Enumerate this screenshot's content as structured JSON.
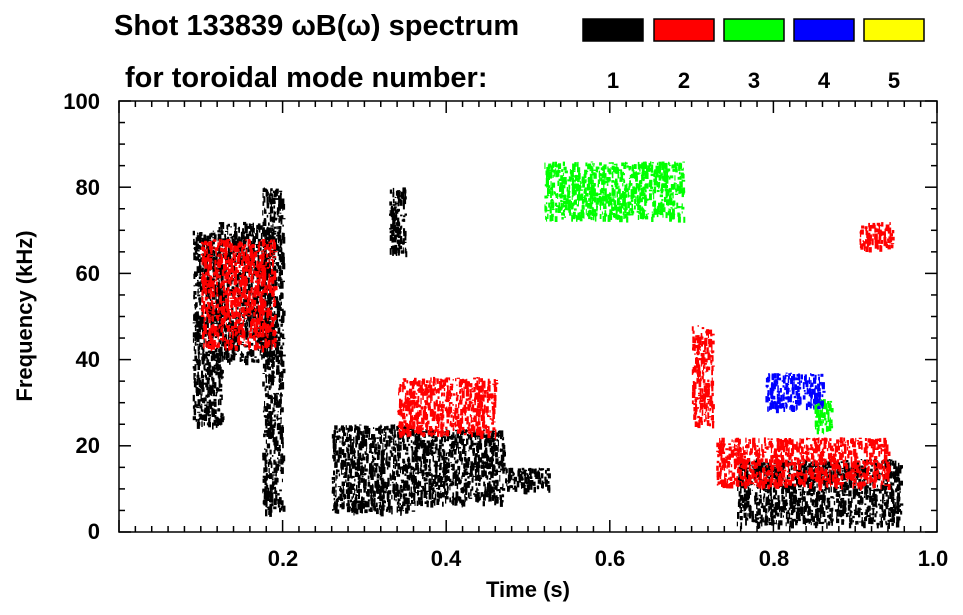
{
  "chart_data": {
    "type": "spectrogram",
    "title_line1": "Shot 133839 ωB(ω) spectrum",
    "title_line2": "for toroidal mode number:",
    "xlabel": "Time (s)",
    "ylabel": "Frequency (kHz)",
    "xlim": [
      0.0,
      1.0
    ],
    "ylim": [
      0,
      100
    ],
    "x_ticks": [
      {
        "value": 0.2,
        "label": "0.2"
      },
      {
        "value": 0.4,
        "label": "0.4"
      },
      {
        "value": 0.6,
        "label": "0.6"
      },
      {
        "value": 0.8,
        "label": "0.8"
      },
      {
        "value": 1.0,
        "label": "1.0"
      }
    ],
    "y_ticks": [
      {
        "value": 0,
        "label": "0"
      },
      {
        "value": 20,
        "label": "20"
      },
      {
        "value": 40,
        "label": "40"
      },
      {
        "value": 60,
        "label": "60"
      },
      {
        "value": 80,
        "label": "80"
      },
      {
        "value": 100,
        "label": "100"
      }
    ],
    "legend": [
      {
        "mode": "1",
        "color": "#000000"
      },
      {
        "mode": "2",
        "color": "#ff0000"
      },
      {
        "mode": "3",
        "color": "#00ff00"
      },
      {
        "mode": "4",
        "color": "#0000ff"
      },
      {
        "mode": "5",
        "color": "#ffff00"
      }
    ],
    "regions": [
      {
        "mode": "1",
        "color": "#000000",
        "name": "n1-early-burst",
        "t": [
          0.09,
          0.125
        ],
        "f": [
          25,
          70
        ]
      },
      {
        "mode": "1",
        "color": "#000000",
        "name": "n1-early-rising-chirp",
        "t": [
          0.12,
          0.185
        ],
        "f": [
          40,
          72
        ]
      },
      {
        "mode": "1",
        "color": "#000000",
        "name": "n1-early-column",
        "t": [
          0.175,
          0.2
        ],
        "f": [
          5,
          80
        ]
      },
      {
        "mode": "1",
        "color": "#000000",
        "name": "n1-low-band-0.26-0.36",
        "t": [
          0.26,
          0.36
        ],
        "f": [
          5,
          25
        ]
      },
      {
        "mode": "1",
        "color": "#000000",
        "name": "n1-high-70kHz-burst",
        "t": [
          0.33,
          0.35
        ],
        "f": [
          65,
          80
        ]
      },
      {
        "mode": "1",
        "color": "#000000",
        "name": "n1-low-band-0.36-0.47",
        "t": [
          0.36,
          0.47
        ],
        "f": [
          7,
          24
        ]
      },
      {
        "mode": "1",
        "color": "#000000",
        "name": "n1-low-tail",
        "t": [
          0.47,
          0.525
        ],
        "f": [
          10,
          15
        ]
      },
      {
        "mode": "1",
        "color": "#000000",
        "name": "n1-late-low-band",
        "t": [
          0.755,
          0.955
        ],
        "f": [
          2,
          17
        ]
      },
      {
        "mode": "2",
        "color": "#ff0000",
        "name": "n2-chirp-0.10-0.19",
        "t": [
          0.1,
          0.19
        ],
        "f": [
          43,
          68
        ]
      },
      {
        "mode": "2",
        "color": "#ff0000",
        "name": "n2-downchirp-0.34-0.46",
        "t": [
          0.34,
          0.46
        ],
        "f": [
          23,
          36
        ]
      },
      {
        "mode": "2",
        "color": "#ff0000",
        "name": "n2-burst-0.70-0.72",
        "t": [
          0.7,
          0.725
        ],
        "f": [
          25,
          48
        ]
      },
      {
        "mode": "2",
        "color": "#ff0000",
        "name": "n2-late-band",
        "t": [
          0.73,
          0.94
        ],
        "f": [
          11,
          22
        ]
      },
      {
        "mode": "2",
        "color": "#ff0000",
        "name": "n2-late-70kHz",
        "t": [
          0.905,
          0.945
        ],
        "f": [
          66,
          72
        ]
      },
      {
        "mode": "3",
        "color": "#00ff00",
        "name": "n3-arc-0.52-0.69",
        "t": [
          0.52,
          0.69
        ],
        "f": [
          73,
          86
        ]
      },
      {
        "mode": "3",
        "color": "#00ff00",
        "name": "n3-late-30kHz",
        "t": [
          0.85,
          0.87
        ],
        "f": [
          24,
          31
        ]
      },
      {
        "mode": "4",
        "color": "#0000ff",
        "name": "n4-late-specks",
        "t": [
          0.79,
          0.86
        ],
        "f": [
          29,
          37
        ]
      }
    ]
  }
}
